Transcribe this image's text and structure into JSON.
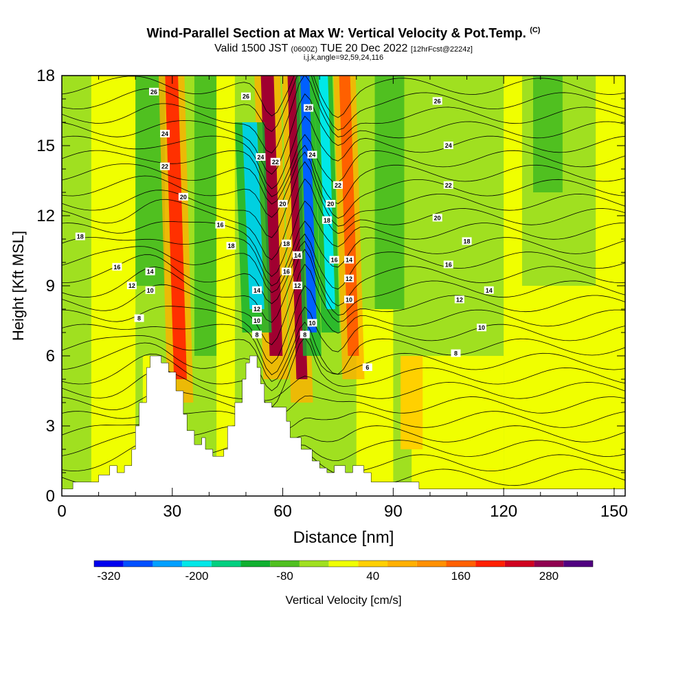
{
  "title": {
    "main": "Wind-Parallel Section at Max W: Vertical Velocity & Pot.Temp.",
    "copyright": "(C)",
    "valid": "Valid 1500 JST",
    "utc": "(0600Z)",
    "date": "TUE 20 Dec 2022",
    "forecast": "[12hrFcst@2224z]",
    "indices": "i,j,k,angle=92,59,24,116"
  },
  "chart_data": {
    "type": "heatmap",
    "xlabel": "Distance [nm]",
    "ylabel": "Height [Kft MSL]",
    "xlim": [
      0,
      153
    ],
    "ylim": [
      0,
      18
    ],
    "xticks": [
      0,
      30,
      60,
      90,
      120,
      150
    ],
    "yticks": [
      0,
      3,
      6,
      9,
      12,
      15,
      18
    ],
    "grid": false,
    "colorbar": {
      "label": "Vertical Velocity [cm/s]",
      "placement": "bottom",
      "tick_labels": [
        "-320",
        "-200",
        "-80",
        "40",
        "160",
        "280"
      ],
      "tick_values": [
        -320,
        -200,
        -80,
        40,
        160,
        280
      ],
      "range": [
        -340,
        340
      ],
      "colors": [
        "#0000ee",
        "#0050ff",
        "#00a0ff",
        "#00e8e8",
        "#00d080",
        "#10b030",
        "#50c020",
        "#a0e020",
        "#f0ff00",
        "#ffd000",
        "#ffb000",
        "#ff9000",
        "#ff6000",
        "#ff2000",
        "#d00020",
        "#900050",
        "#500080"
      ]
    },
    "updraft_bands": [
      {
        "x": 31,
        "w": 3.5,
        "top": 18,
        "bottom": 5,
        "color": "#ff3000"
      },
      {
        "x": 57,
        "w": 3.5,
        "top": 18,
        "bottom": 6,
        "color": "#a00030"
      },
      {
        "x": 64,
        "w": 3,
        "top": 18,
        "bottom": 5,
        "color": "#a00030"
      },
      {
        "x": 78,
        "w": 3,
        "top": 18,
        "bottom": 6,
        "color": "#ff6000"
      }
    ],
    "downdraft_bands": [
      {
        "x": 52,
        "w": 4,
        "top": 16,
        "bottom": 8,
        "color": "#00d0e0"
      },
      {
        "x": 67,
        "w": 2.5,
        "top": 18,
        "bottom": 7,
        "color": "#0060ff"
      },
      {
        "x": 72,
        "w": 2.5,
        "top": 18,
        "bottom": 8,
        "color": "#00e8e8"
      }
    ],
    "terrain": [
      [
        0,
        0.3
      ],
      [
        3,
        0.3
      ],
      [
        3,
        0.6
      ],
      [
        10,
        0.6
      ],
      [
        10,
        0.9
      ],
      [
        13,
        0.9
      ],
      [
        13,
        1.3
      ],
      [
        15,
        1.3
      ],
      [
        15,
        1.0
      ],
      [
        17,
        1.0
      ],
      [
        17,
        1.3
      ],
      [
        19,
        1.3
      ],
      [
        19,
        2.0
      ],
      [
        20,
        2.0
      ],
      [
        20,
        3.0
      ],
      [
        21,
        3.0
      ],
      [
        21,
        4.0
      ],
      [
        23,
        4.0
      ],
      [
        23,
        5.5
      ],
      [
        24,
        5.5
      ],
      [
        24,
        6.0
      ],
      [
        27,
        6.0
      ],
      [
        27,
        5.7
      ],
      [
        29,
        5.7
      ],
      [
        29,
        5.3
      ],
      [
        31,
        5.3
      ],
      [
        31,
        4.5
      ],
      [
        33,
        4.5
      ],
      [
        33,
        3.5
      ],
      [
        34,
        3.5
      ],
      [
        34,
        2.8
      ],
      [
        36,
        2.8
      ],
      [
        36,
        2.2
      ],
      [
        38,
        2.2
      ],
      [
        38,
        2.5
      ],
      [
        39,
        2.5
      ],
      [
        39,
        2.0
      ],
      [
        41,
        2.0
      ],
      [
        41,
        1.7
      ],
      [
        44,
        1.7
      ],
      [
        44,
        2.0
      ],
      [
        45,
        2.0
      ],
      [
        45,
        3.0
      ],
      [
        47,
        3.0
      ],
      [
        47,
        4.0
      ],
      [
        49,
        4.0
      ],
      [
        49,
        5.0
      ],
      [
        50,
        5.0
      ],
      [
        50,
        5.7
      ],
      [
        51,
        5.7
      ],
      [
        51,
        6.0
      ],
      [
        53,
        6.0
      ],
      [
        53,
        5.5
      ],
      [
        54,
        5.5
      ],
      [
        54,
        4.8
      ],
      [
        55,
        4.8
      ],
      [
        55,
        4.0
      ],
      [
        57,
        4.0
      ],
      [
        57,
        3.8
      ],
      [
        61,
        3.8
      ],
      [
        61,
        3.2
      ],
      [
        62,
        3.2
      ],
      [
        62,
        2.5
      ],
      [
        65,
        2.5
      ],
      [
        65,
        2.0
      ],
      [
        68,
        2.0
      ],
      [
        68,
        1.5
      ],
      [
        70,
        1.5
      ],
      [
        70,
        1.2
      ],
      [
        72,
        1.2
      ],
      [
        72,
        1.0
      ],
      [
        74,
        1.0
      ],
      [
        74,
        1.3
      ],
      [
        77,
        1.3
      ],
      [
        77,
        1.0
      ],
      [
        79,
        1.0
      ],
      [
        79,
        1.3
      ],
      [
        82,
        1.3
      ],
      [
        82,
        1.0
      ],
      [
        84,
        1.0
      ],
      [
        84,
        0.6
      ],
      [
        97,
        0.6
      ],
      [
        97,
        0.3
      ],
      [
        153,
        0.3
      ]
    ],
    "theta_labels": [
      {
        "text": "26",
        "x": 25,
        "y": 17.3
      },
      {
        "text": "24",
        "x": 28,
        "y": 15.5
      },
      {
        "text": "22",
        "x": 28,
        "y": 14.1
      },
      {
        "text": "20",
        "x": 33,
        "y": 12.8
      },
      {
        "text": "18",
        "x": 5,
        "y": 11.1
      },
      {
        "text": "16",
        "x": 15,
        "y": 9.8
      },
      {
        "text": "14",
        "x": 24,
        "y": 9.6
      },
      {
        "text": "12",
        "x": 19,
        "y": 9.0
      },
      {
        "text": "10",
        "x": 24,
        "y": 8.8
      },
      {
        "text": "8",
        "x": 21,
        "y": 7.6
      },
      {
        "text": "26",
        "x": 50,
        "y": 17.1
      },
      {
        "text": "16",
        "x": 43,
        "y": 11.6
      },
      {
        "text": "18",
        "x": 46,
        "y": 10.7
      },
      {
        "text": "24",
        "x": 54,
        "y": 14.5
      },
      {
        "text": "22",
        "x": 58,
        "y": 14.3
      },
      {
        "text": "20",
        "x": 60,
        "y": 12.5
      },
      {
        "text": "18",
        "x": 61,
        "y": 10.8
      },
      {
        "text": "16",
        "x": 61,
        "y": 9.6
      },
      {
        "text": "14",
        "x": 53,
        "y": 8.8
      },
      {
        "text": "12",
        "x": 53,
        "y": 8.0
      },
      {
        "text": "10",
        "x": 53,
        "y": 7.5
      },
      {
        "text": "8",
        "x": 53,
        "y": 6.9
      },
      {
        "text": "14",
        "x": 64,
        "y": 10.3
      },
      {
        "text": "12",
        "x": 64,
        "y": 9.0
      },
      {
        "text": "28",
        "x": 67,
        "y": 16.6
      },
      {
        "text": "24",
        "x": 68,
        "y": 14.6
      },
      {
        "text": "22",
        "x": 75,
        "y": 13.3
      },
      {
        "text": "20",
        "x": 73,
        "y": 12.5
      },
      {
        "text": "18",
        "x": 72,
        "y": 11.8
      },
      {
        "text": "16",
        "x": 74,
        "y": 10.1
      },
      {
        "text": "14",
        "x": 78,
        "y": 10.1
      },
      {
        "text": "12",
        "x": 78,
        "y": 9.3
      },
      {
        "text": "10",
        "x": 78,
        "y": 8.4
      },
      {
        "text": "10",
        "x": 68,
        "y": 7.4
      },
      {
        "text": "8",
        "x": 66,
        "y": 6.9
      },
      {
        "text": "6",
        "x": 83,
        "y": 5.5
      },
      {
        "text": "26",
        "x": 102,
        "y": 16.9
      },
      {
        "text": "24",
        "x": 105,
        "y": 15.0
      },
      {
        "text": "22",
        "x": 105,
        "y": 13.3
      },
      {
        "text": "20",
        "x": 102,
        "y": 11.9
      },
      {
        "text": "18",
        "x": 110,
        "y": 10.9
      },
      {
        "text": "16",
        "x": 105,
        "y": 9.9
      },
      {
        "text": "14",
        "x": 116,
        "y": 8.8
      },
      {
        "text": "12",
        "x": 108,
        "y": 8.4
      },
      {
        "text": "10",
        "x": 114,
        "y": 7.2
      },
      {
        "text": "8",
        "x": 107,
        "y": 6.1
      }
    ]
  }
}
